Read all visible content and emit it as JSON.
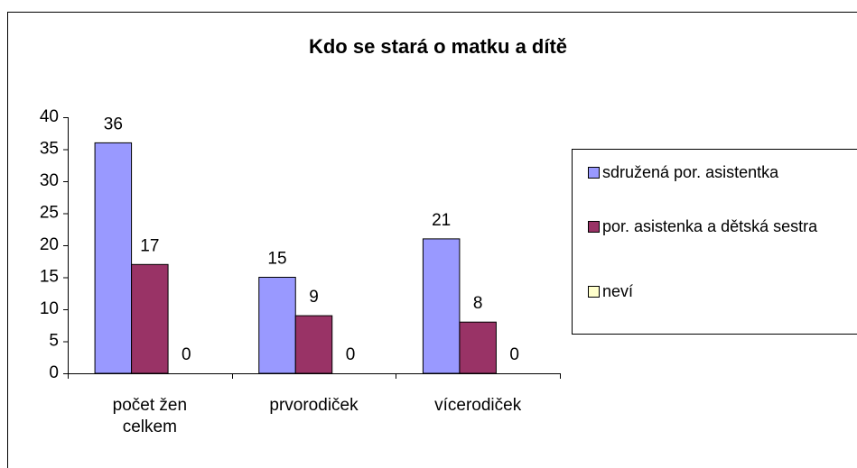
{
  "chart_data": {
    "type": "bar",
    "title": "Kdo se stará o matku a dítě",
    "categories": [
      "počet žen celkem",
      "prvorodiček",
      "vícerodiček"
    ],
    "series": [
      {
        "name": "sdružená por. asistentka",
        "color": "#9999ff",
        "values": [
          36,
          15,
          21
        ]
      },
      {
        "name": "por. asistenka a dětská sestra",
        "color": "#993366",
        "values": [
          17,
          9,
          8
        ]
      },
      {
        "name": "neví",
        "color": "#ffffcc",
        "values": [
          0,
          0,
          0
        ]
      }
    ],
    "ylim": [
      0,
      40
    ],
    "yticks": [
      0,
      5,
      10,
      15,
      20,
      25,
      30,
      35,
      40
    ],
    "grid": false,
    "legend": "right"
  }
}
